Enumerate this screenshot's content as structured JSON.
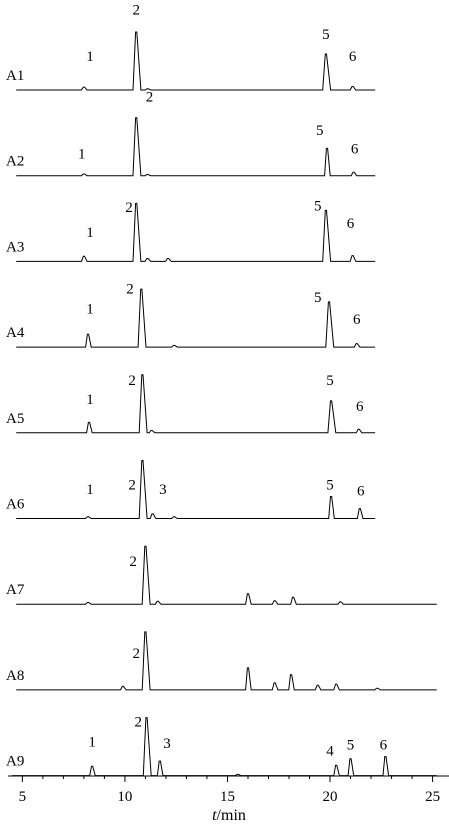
{
  "chart_data": {
    "type": "line",
    "title": "",
    "xlabel_var": "t",
    "xlabel_unit": "/min",
    "xlim": [
      4.3,
      25.8
    ],
    "xticks": [
      5,
      10,
      15,
      20,
      25
    ],
    "tick_labels": [
      "5",
      "10",
      "15",
      "20",
      "25"
    ],
    "grid": false,
    "series": [
      {
        "name": "A1",
        "peaks": [
          {
            "x": 8.0,
            "h": 0.05
          },
          {
            "x": 10.55,
            "h": 1.0,
            "label": "2"
          },
          {
            "x": 11.1,
            "h": 0.02
          },
          {
            "x": 19.8,
            "h": 0.62,
            "label": "5"
          },
          {
            "x": 21.1,
            "h": 0.06
          }
        ],
        "labels": [
          {
            "text": "1",
            "x": 8.3,
            "h": 0.5
          },
          {
            "text": "2",
            "x": 10.55,
            "h": 1.3
          },
          {
            "text": "5",
            "x": 19.8,
            "h": 0.88
          },
          {
            "text": "6",
            "x": 21.1,
            "h": 0.5
          }
        ]
      },
      {
        "name": "A2",
        "peaks": [
          {
            "x": 8.0,
            "h": 0.03
          },
          {
            "x": 10.55,
            "h": 1.0
          },
          {
            "x": 11.1,
            "h": 0.02
          },
          {
            "x": 19.85,
            "h": 0.47
          },
          {
            "x": 21.15,
            "h": 0.06
          }
        ],
        "labels": [
          {
            "text": "1",
            "x": 7.9,
            "h": 0.3
          },
          {
            "text": "2",
            "x": 11.2,
            "h": 1.28
          },
          {
            "text": "5",
            "x": 19.5,
            "h": 0.7
          },
          {
            "text": "6",
            "x": 21.2,
            "h": 0.38
          }
        ]
      },
      {
        "name": "A3",
        "peaks": [
          {
            "x": 8.0,
            "h": 0.09
          },
          {
            "x": 10.55,
            "h": 1.0
          },
          {
            "x": 11.1,
            "h": 0.05
          },
          {
            "x": 12.1,
            "h": 0.05
          },
          {
            "x": 19.8,
            "h": 0.88
          },
          {
            "x": 21.1,
            "h": 0.1
          }
        ],
        "labels": [
          {
            "text": "1",
            "x": 8.3,
            "h": 0.42
          },
          {
            "text": "2",
            "x": 10.2,
            "h": 0.85
          },
          {
            "text": "5",
            "x": 19.4,
            "h": 0.88
          },
          {
            "text": "6",
            "x": 21.0,
            "h": 0.58
          }
        ]
      },
      {
        "name": "A4",
        "peaks": [
          {
            "x": 8.2,
            "h": 0.22
          },
          {
            "x": 10.8,
            "h": 1.0
          },
          {
            "x": 12.4,
            "h": 0.03
          },
          {
            "x": 19.95,
            "h": 0.78
          },
          {
            "x": 21.3,
            "h": 0.06
          }
        ],
        "labels": [
          {
            "text": "1",
            "x": 8.3,
            "h": 0.58
          },
          {
            "text": "2",
            "x": 10.25,
            "h": 0.92
          },
          {
            "text": "5",
            "x": 19.4,
            "h": 0.78
          },
          {
            "text": "6",
            "x": 21.3,
            "h": 0.4
          }
        ]
      },
      {
        "name": "A5",
        "peaks": [
          {
            "x": 8.25,
            "h": 0.18
          },
          {
            "x": 10.85,
            "h": 1.0
          },
          {
            "x": 11.3,
            "h": 0.04
          },
          {
            "x": 20.05,
            "h": 0.55
          },
          {
            "x": 21.4,
            "h": 0.06
          }
        ],
        "labels": [
          {
            "text": "1",
            "x": 8.3,
            "h": 0.5
          },
          {
            "text": "2",
            "x": 10.35,
            "h": 0.82
          },
          {
            "text": "5",
            "x": 20.0,
            "h": 0.82
          },
          {
            "text": "6",
            "x": 21.45,
            "h": 0.38
          }
        ]
      },
      {
        "name": "A6",
        "peaks": [
          {
            "x": 8.2,
            "h": 0.03
          },
          {
            "x": 10.85,
            "h": 1.0
          },
          {
            "x": 11.35,
            "h": 0.08
          },
          {
            "x": 12.4,
            "h": 0.03
          },
          {
            "x": 20.05,
            "h": 0.38
          },
          {
            "x": 21.45,
            "h": 0.17
          }
        ],
        "labels": [
          {
            "text": "1",
            "x": 8.3,
            "h": 0.42
          },
          {
            "text": "2",
            "x": 10.35,
            "h": 0.5
          },
          {
            "text": "3",
            "x": 11.85,
            "h": 0.42
          },
          {
            "text": "5",
            "x": 20.0,
            "h": 0.5
          },
          {
            "text": "6",
            "x": 21.5,
            "h": 0.4
          }
        ]
      },
      {
        "name": "A7",
        "peaks": [
          {
            "x": 8.2,
            "h": 0.03
          },
          {
            "x": 11.0,
            "h": 1.0
          },
          {
            "x": 11.6,
            "h": 0.05
          },
          {
            "x": 16.0,
            "h": 0.18
          },
          {
            "x": 17.3,
            "h": 0.06
          },
          {
            "x": 18.2,
            "h": 0.12
          },
          {
            "x": 20.5,
            "h": 0.04
          }
        ],
        "labels": [
          {
            "text": "2",
            "x": 10.4,
            "h": 0.66
          }
        ]
      },
      {
        "name": "A8",
        "peaks": [
          {
            "x": 9.9,
            "h": 0.06
          },
          {
            "x": 11.0,
            "h": 1.0
          },
          {
            "x": 16.0,
            "h": 0.38
          },
          {
            "x": 17.3,
            "h": 0.12
          },
          {
            "x": 18.1,
            "h": 0.26
          },
          {
            "x": 19.4,
            "h": 0.08
          },
          {
            "x": 20.3,
            "h": 0.1
          },
          {
            "x": 22.3,
            "h": 0.03
          }
        ],
        "labels": [
          {
            "text": "2",
            "x": 10.55,
            "h": 0.55
          }
        ]
      },
      {
        "name": "A9",
        "peaks": [
          {
            "x": 8.4,
            "h": 0.16
          },
          {
            "x": 11.05,
            "h": 1.0
          },
          {
            "x": 11.7,
            "h": 0.25
          },
          {
            "x": 15.5,
            "h": 0.02
          },
          {
            "x": 20.3,
            "h": 0.18
          },
          {
            "x": 21.0,
            "h": 0.29
          },
          {
            "x": 22.7,
            "h": 0.33
          }
        ],
        "labels": [
          {
            "text": "1",
            "x": 8.4,
            "h": 0.5
          },
          {
            "text": "2",
            "x": 10.65,
            "h": 0.85
          },
          {
            "text": "3",
            "x": 12.05,
            "h": 0.48
          },
          {
            "text": "4",
            "x": 20.0,
            "h": 0.35
          },
          {
            "text": "5",
            "x": 21.0,
            "h": 0.45
          },
          {
            "text": "6",
            "x": 22.6,
            "h": 0.45
          }
        ]
      }
    ]
  }
}
